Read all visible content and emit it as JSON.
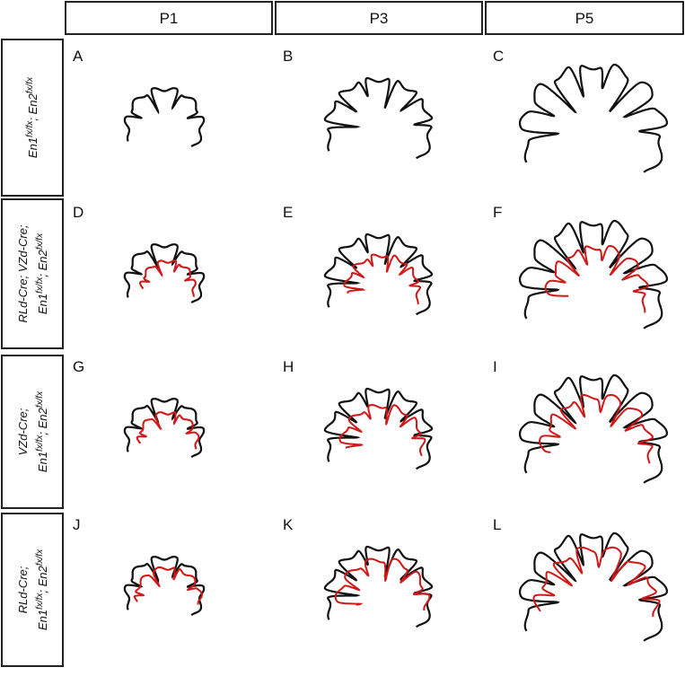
{
  "columns": [
    "P1",
    "P3",
    "P5"
  ],
  "rows": [
    {
      "lines": [
        [
          {
            "text": "En1"
          },
          {
            "sup": "fx/fx"
          },
          {
            "text": "; En2"
          },
          {
            "sup": "fx/fx"
          }
        ]
      ]
    },
    {
      "lines": [
        [
          {
            "text": "RLd-Cre; VZd-Cre;"
          }
        ],
        [
          {
            "text": "En1"
          },
          {
            "sup": "fx/fx"
          },
          {
            "text": "; En2"
          },
          {
            "sup": "fx/fx"
          }
        ]
      ]
    },
    {
      "lines": [
        [
          {
            "text": "VZd-Cre;"
          }
        ],
        [
          {
            "text": "En1"
          },
          {
            "sup": "fx/fx"
          },
          {
            "text": "; En2"
          },
          {
            "sup": "fx/fx"
          }
        ]
      ]
    },
    {
      "lines": [
        [
          {
            "text": "RLd-Cre;"
          }
        ],
        [
          {
            "text": "En1"
          },
          {
            "sup": "fx/fx"
          },
          {
            "text": "; En2"
          },
          {
            "sup": "fx/fx"
          }
        ]
      ]
    }
  ],
  "panels": [
    "A",
    "B",
    "C",
    "D",
    "E",
    "F",
    "G",
    "H",
    "I",
    "J",
    "K",
    "L"
  ]
}
